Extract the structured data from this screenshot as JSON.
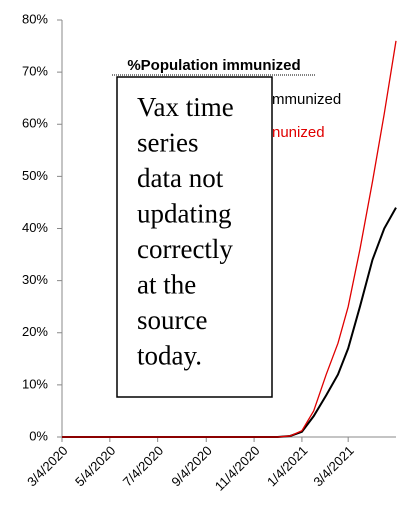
{
  "chart_data": {
    "type": "line",
    "title": "%Population immunized",
    "annotation_lines": [
      "Vax time",
      "series",
      "data not",
      "updating",
      "correctly",
      "at the",
      "source",
      "today."
    ],
    "x": [
      "3/4/2020",
      "12/4/2020",
      "12/20/2020",
      "1/4/2021",
      "1/19/2021",
      "2/4/2021",
      "2/19/2021",
      "3/4/2021",
      "3/19/2021",
      "4/4/2021",
      "4/19/2021",
      "5/4/2021"
    ],
    "series": [
      {
        "name": "mmunized",
        "color": "#000000",
        "values": [
          0,
          0,
          0.2,
          1,
          4,
          8,
          12,
          17,
          25,
          34,
          40,
          44
        ]
      },
      {
        "name": "nunized",
        "color": "#e00000",
        "values": [
          0,
          0,
          0.2,
          1.2,
          5,
          12,
          18,
          25,
          36,
          49,
          62,
          76
        ]
      }
    ],
    "xlim": [
      "3/4/2020",
      "5/4/2021"
    ],
    "xticks": [
      "3/4/2020",
      "5/4/2020",
      "7/4/2020",
      "9/4/2020",
      "11/4/2020",
      "1/4/2021",
      "3/4/2021"
    ],
    "ylim": [
      0,
      80
    ],
    "yticks": [
      {
        "value": 0,
        "label": "0%"
      },
      {
        "value": 10,
        "label": "10%"
      },
      {
        "value": 20,
        "label": "20%"
      },
      {
        "value": 30,
        "label": "30%"
      },
      {
        "value": 40,
        "label": "40%"
      },
      {
        "value": 50,
        "label": "50%"
      },
      {
        "value": 60,
        "label": "60%"
      },
      {
        "value": 70,
        "label": "70%"
      },
      {
        "value": 80,
        "label": "80%"
      }
    ]
  }
}
